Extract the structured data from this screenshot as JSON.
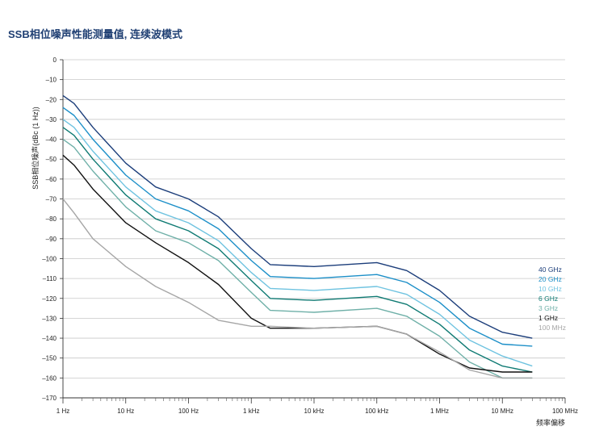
{
  "chart_data": {
    "type": "line",
    "title": "SSB相位噪声性能测量值, 连续波模式",
    "xlabel": "频率偏移",
    "ylabel": "SSB相位噪声(dBc (1 Hz))",
    "x_scale": "log",
    "xlim": [
      1,
      100000000
    ],
    "ylim": [
      -170,
      0
    ],
    "x_ticks": [
      {
        "value": 1,
        "label": "1 Hz"
      },
      {
        "value": 10,
        "label": "10 Hz"
      },
      {
        "value": 100,
        "label": "100 Hz"
      },
      {
        "value": 1000,
        "label": "1 kHz"
      },
      {
        "value": 10000,
        "label": "10 kHz"
      },
      {
        "value": 100000,
        "label": "100 kHz"
      },
      {
        "value": 1000000,
        "label": "1 MHz"
      },
      {
        "value": 10000000,
        "label": "10 MHz"
      },
      {
        "value": 100000000,
        "label": "100 MHz"
      }
    ],
    "y_ticks": [
      0,
      -10,
      -20,
      -30,
      -40,
      -50,
      -60,
      -70,
      -80,
      -90,
      -100,
      -110,
      -120,
      -130,
      -140,
      -150,
      -160,
      -170
    ],
    "grid": true,
    "legend_position": "right",
    "series": [
      {
        "name": "40 GHz",
        "color": "#1b3d7a",
        "x": [
          1,
          1.5,
          3,
          10,
          30,
          100,
          300,
          1000,
          2000,
          10000,
          100000,
          300000,
          1000000,
          3000000,
          10000000,
          30000000
        ],
        "y": [
          -18,
          -22,
          -34,
          -52,
          -64,
          -70,
          -79,
          -95,
          -103,
          -104,
          -102,
          -106,
          -116,
          -129,
          -137,
          -140
        ]
      },
      {
        "name": "20 GHz",
        "color": "#1c8fc8",
        "x": [
          1,
          1.5,
          3,
          10,
          30,
          100,
          300,
          1000,
          2000,
          10000,
          100000,
          300000,
          1000000,
          3000000,
          10000000,
          30000000
        ],
        "y": [
          -24,
          -28,
          -40,
          -58,
          -70,
          -76,
          -85,
          -101,
          -109,
          -110,
          -108,
          -112,
          -122,
          -135,
          -143,
          -144
        ]
      },
      {
        "name": "10 GHz",
        "color": "#6fc3e0",
        "x": [
          1,
          1.5,
          3,
          10,
          30,
          100,
          300,
          1000,
          2000,
          10000,
          100000,
          300000,
          1000000,
          3000000,
          10000000,
          30000000
        ],
        "y": [
          -30,
          -34,
          -46,
          -64,
          -76,
          -82,
          -91,
          -107,
          -115,
          -116,
          -114,
          -118,
          -128,
          -141,
          -149,
          -154
        ]
      },
      {
        "name": "6 GHz",
        "color": "#0f7a73",
        "x": [
          1,
          1.5,
          3,
          10,
          30,
          100,
          300,
          1000,
          2000,
          10000,
          100000,
          300000,
          1000000,
          3000000,
          10000000,
          30000000
        ],
        "y": [
          -34,
          -38,
          -50,
          -68,
          -80,
          -86,
          -95,
          -111,
          -120,
          -121,
          -119,
          -123,
          -133,
          -146,
          -154,
          -157
        ]
      },
      {
        "name": "3 GHz",
        "color": "#6fb0a8",
        "x": [
          1,
          1.5,
          3,
          10,
          30,
          100,
          300,
          1000,
          2000,
          10000,
          100000,
          300000,
          1000000,
          3000000,
          10000000,
          30000000
        ],
        "y": [
          -40,
          -44,
          -56,
          -74,
          -86,
          -92,
          -101,
          -117,
          -126,
          -127,
          -125,
          -129,
          -139,
          -152,
          -160,
          -160
        ]
      },
      {
        "name": "1 GHz",
        "color": "#111111",
        "x": [
          1,
          1.5,
          3,
          10,
          30,
          100,
          300,
          1000,
          2000,
          10000,
          100000,
          300000,
          1000000,
          3000000,
          10000000,
          30000000
        ],
        "y": [
          -48,
          -53,
          -65,
          -82,
          -92,
          -102,
          -113,
          -130,
          -135,
          -135,
          -134,
          -138,
          -148,
          -155,
          -157,
          -157
        ]
      },
      {
        "name": "100 MHz",
        "color": "#a6a6a6",
        "x": [
          1,
          1.5,
          3,
          10,
          30,
          100,
          300,
          1000,
          2000,
          10000,
          100000,
          300000,
          1000000,
          3000000,
          10000000,
          30000000
        ],
        "y": [
          -70,
          -77,
          -90,
          -104,
          -114,
          -122,
          -131,
          -134,
          -134,
          -135,
          -134,
          -138,
          -147,
          -156,
          -160,
          -160
        ]
      }
    ]
  }
}
